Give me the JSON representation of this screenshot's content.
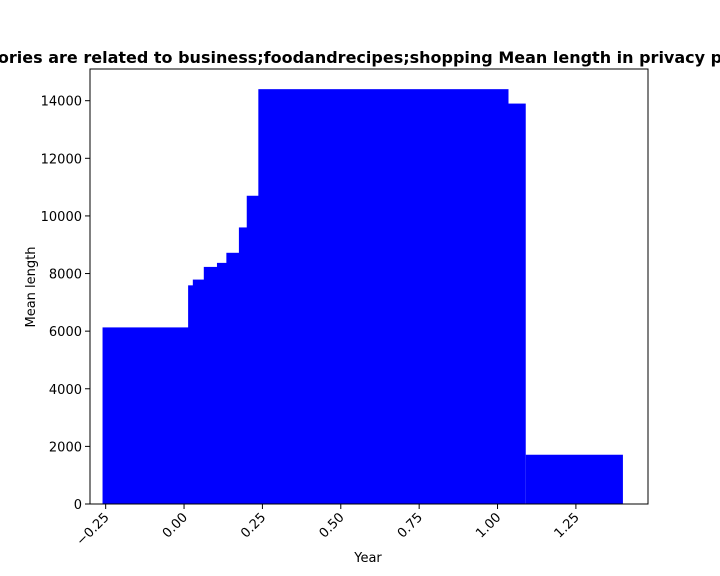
{
  "chart_data": {
    "type": "bar",
    "title": "ories are related to business;foodandrecipes;shopping Mean length in privacy p",
    "xlabel": "Year",
    "ylabel": "Mean length",
    "bar_color": "#0000ff",
    "xlim": [
      -0.3,
      1.48
    ],
    "ylim": [
      0,
      15100
    ],
    "grid": false,
    "legend": "none",
    "xticks": [
      -0.25,
      0.0,
      0.25,
      0.5,
      0.75,
      1.0,
      1.25
    ],
    "xtick_labels": [
      "−0.25",
      "0.00",
      "0.25",
      "0.50",
      "0.75",
      "1.00",
      "1.25"
    ],
    "yticks": [
      0,
      2000,
      4000,
      6000,
      8000,
      10000,
      12000,
      14000
    ],
    "ytick_labels": [
      "0",
      "2000",
      "4000",
      "6000",
      "8000",
      "10000",
      "12000",
      "14000"
    ],
    "bars": [
      {
        "x0": -0.26,
        "x1": 0.85,
        "value": 6130
      },
      {
        "x0": 0.013,
        "x1": 0.85,
        "value": 7590
      },
      {
        "x0": 0.028,
        "x1": 0.85,
        "value": 7790
      },
      {
        "x0": 0.063,
        "x1": 0.85,
        "value": 8230
      },
      {
        "x0": 0.105,
        "x1": 0.85,
        "value": 8370
      },
      {
        "x0": 0.135,
        "x1": 0.85,
        "value": 8720
      },
      {
        "x0": 0.175,
        "x1": 0.85,
        "value": 9600
      },
      {
        "x0": 0.2,
        "x1": 0.85,
        "value": 10700
      },
      {
        "x0": 0.237,
        "x1": 1.035,
        "value": 14400
      },
      {
        "x0": 1.035,
        "x1": 1.09,
        "value": 13900
      },
      {
        "x0": 1.09,
        "x1": 1.4,
        "value": 1710
      }
    ]
  }
}
